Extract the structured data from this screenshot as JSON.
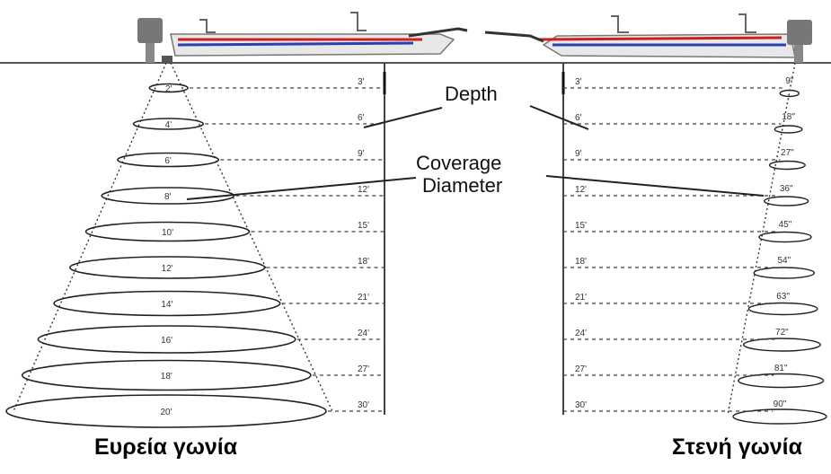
{
  "diagram": {
    "labels": {
      "depth": "Depth",
      "coverage_line1": "Coverage",
      "coverage_line2": "Diameter"
    },
    "wide": {
      "caption": "Ευρεία γωνία",
      "depths": [
        "3'",
        "6'",
        "9'",
        "12'",
        "15'",
        "18'",
        "21'",
        "24'",
        "27'",
        "30'"
      ],
      "diameters": [
        "2'",
        "4'",
        "6'",
        "8'",
        "10'",
        "12'",
        "14'",
        "16'",
        "18'",
        "20'"
      ]
    },
    "narrow": {
      "caption": "Στενή γωνία",
      "depths": [
        "3'",
        "6'",
        "9'",
        "12'",
        "15'",
        "18'",
        "21'",
        "24'",
        "27'",
        "30'"
      ],
      "diameters": [
        "9\"",
        "18\"",
        "27\"",
        "36\"",
        "45\"",
        "54\"",
        "63\"",
        "72\"",
        "81\"",
        "90\""
      ]
    }
  }
}
